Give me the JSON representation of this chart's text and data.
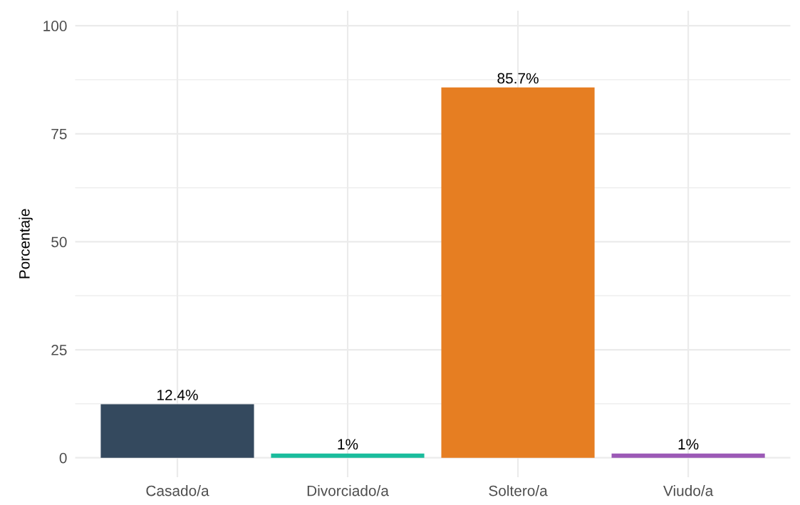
{
  "chart_data": {
    "type": "bar",
    "ylabel": "Porcentaje",
    "categories": [
      "Casado/a",
      "Divorciado/a",
      "Soltero/a",
      "Viudo/a"
    ],
    "values": [
      12.4,
      1,
      85.7,
      1
    ],
    "colors": [
      "#34495e",
      "#1abc9c",
      "#e67e22",
      "#9b59b6"
    ],
    "value_labels": [
      "12.4%",
      "1%",
      "85.7%",
      "1%"
    ],
    "ylim": [
      -4.5,
      103.5
    ],
    "yticks": [
      0,
      {
        "value": 12.5,
        "label": null
      },
      25,
      {
        "value": 37.5,
        "label": null
      },
      50,
      {
        "value": 62.5,
        "label": null
      },
      75,
      {
        "value": 87.5,
        "label": null
      },
      100
    ],
    "grid": true
  }
}
